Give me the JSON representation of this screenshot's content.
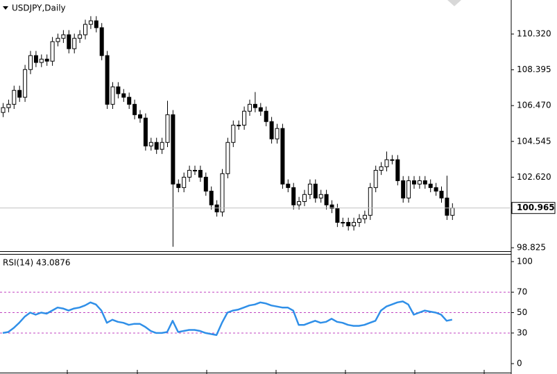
{
  "chart_data": [
    {
      "type": "candlestick",
      "title": "USDJPY,Daily",
      "open": [
        106.1,
        106.36,
        106.54,
        107.29,
        106.92,
        108.41,
        109.16,
        108.79,
        108.97,
        108.86,
        109.91,
        110.09,
        110.28,
        109.53,
        110.09,
        110.28,
        110.84,
        111.03,
        110.66,
        109.16,
        106.54,
        107.48,
        107.11,
        106.92,
        106.54,
        105.98,
        105.8,
        104.3,
        104.49,
        104.12,
        104.49,
        105.98,
        102.25,
        102.06,
        102.62,
        102.99,
        102.99,
        102.62,
        101.87,
        101.13,
        100.75,
        102.81,
        104.49,
        105.42,
        105.42,
        106.17,
        106.54,
        106.36,
        106.17,
        105.61,
        104.68,
        105.24,
        102.25,
        102.06,
        101.13,
        101.31,
        101.69,
        102.25,
        101.5,
        101.69,
        101.13,
        100.94,
        100.19,
        100.19,
        100.0,
        100.19,
        100.38,
        100.57,
        102.06,
        102.99,
        103.18,
        103.56,
        103.56,
        102.43,
        101.5,
        102.43,
        102.25,
        102.43,
        102.25,
        102.06,
        101.87,
        101.5,
        100.57
      ],
      "high": [
        106.61,
        106.79,
        107.54,
        107.54,
        108.66,
        109.41,
        109.41,
        109.22,
        109.22,
        110.16,
        110.34,
        110.53,
        110.53,
        110.34,
        110.53,
        111.09,
        111.28,
        111.28,
        110.91,
        109.41,
        107.73,
        107.73,
        107.36,
        107.17,
        106.79,
        106.23,
        106.05,
        104.74,
        104.74,
        104.74,
        106.73,
        106.23,
        102.5,
        102.87,
        103.24,
        103.24,
        103.24,
        102.87,
        102.12,
        101.38,
        103.06,
        104.74,
        105.67,
        105.67,
        106.42,
        106.79,
        107.2,
        106.61,
        106.42,
        105.86,
        105.49,
        105.49,
        102.5,
        102.31,
        101.56,
        101.94,
        102.5,
        102.5,
        101.94,
        101.94,
        101.38,
        101.19,
        100.44,
        100.44,
        100.44,
        100.63,
        100.82,
        102.31,
        103.24,
        103.43,
        104.0,
        103.81,
        103.81,
        102.68,
        102.68,
        102.68,
        102.68,
        102.68,
        102.5,
        102.31,
        102.12,
        102.7,
        101.22
      ],
      "low": [
        105.85,
        106.11,
        106.29,
        106.67,
        106.67,
        108.16,
        108.54,
        108.54,
        108.61,
        108.61,
        109.66,
        109.84,
        109.28,
        109.28,
        109.84,
        110.03,
        110.59,
        110.41,
        108.91,
        106.29,
        106.29,
        106.86,
        106.67,
        106.29,
        105.73,
        105.55,
        104.05,
        104.05,
        103.87,
        103.87,
        104.24,
        98.88,
        101.81,
        101.81,
        102.37,
        102.74,
        102.37,
        101.62,
        100.88,
        100.5,
        100.5,
        102.56,
        104.24,
        105.17,
        105.17,
        105.92,
        106.11,
        105.92,
        105.36,
        104.43,
        104.43,
        102.0,
        101.81,
        100.88,
        100.88,
        101.06,
        101.44,
        101.25,
        101.25,
        100.88,
        100.69,
        99.94,
        99.94,
        99.75,
        99.75,
        99.94,
        100.13,
        100.32,
        101.81,
        102.74,
        102.93,
        103.31,
        102.18,
        101.25,
        101.25,
        102.0,
        102.0,
        102.0,
        101.81,
        101.62,
        101.25,
        100.32,
        100.32
      ],
      "close": [
        106.36,
        106.54,
        107.29,
        106.92,
        108.41,
        109.16,
        108.79,
        108.97,
        108.86,
        109.91,
        110.09,
        110.28,
        109.53,
        110.09,
        110.28,
        110.84,
        111.03,
        110.66,
        109.16,
        106.54,
        107.48,
        107.11,
        106.92,
        106.54,
        105.98,
        105.8,
        104.3,
        104.49,
        104.12,
        104.49,
        105.98,
        102.25,
        102.06,
        102.62,
        102.99,
        102.99,
        102.62,
        101.87,
        101.13,
        100.75,
        102.81,
        104.49,
        105.42,
        105.42,
        106.17,
        106.54,
        106.36,
        106.17,
        105.61,
        104.68,
        105.24,
        102.25,
        102.06,
        101.13,
        101.31,
        101.69,
        102.25,
        101.5,
        101.69,
        101.13,
        100.94,
        100.19,
        100.19,
        100.0,
        100.19,
        100.38,
        100.57,
        102.06,
        102.99,
        103.18,
        103.56,
        103.56,
        102.43,
        101.5,
        102.43,
        102.25,
        102.43,
        102.25,
        102.06,
        101.87,
        101.5,
        100.57,
        100.965
      ],
      "ylim": [
        98.64,
        112.15
      ],
      "yticks": [
        {
          "value": 110.32,
          "label": "110.320"
        },
        {
          "value": 108.395,
          "label": "108.395"
        },
        {
          "value": 106.47,
          "label": "106.470"
        },
        {
          "value": 104.545,
          "label": "104.545"
        },
        {
          "value": 102.62,
          "label": "102.620"
        },
        {
          "value": 98.825,
          "label": "98.825"
        }
      ],
      "current_price": {
        "value": 100.965,
        "label": "100.965"
      }
    },
    {
      "type": "line",
      "title": "RSI(14) 43.0876",
      "color": "#2f8fe8",
      "values": [
        30,
        31,
        35,
        40,
        46,
        50,
        48,
        50,
        49,
        52,
        55,
        54,
        52,
        54,
        55,
        57,
        60,
        58,
        52,
        40,
        43,
        41,
        40,
        38,
        39,
        39,
        36,
        32,
        30,
        30,
        31,
        42,
        31,
        32,
        33,
        33,
        32,
        30,
        29,
        28,
        40,
        50,
        52,
        53,
        55,
        57,
        58,
        60,
        59,
        57,
        56,
        55,
        55,
        52,
        38,
        38,
        40,
        42,
        40,
        41,
        44,
        41,
        40,
        38,
        37,
        37,
        38,
        40,
        42,
        52,
        56,
        58,
        60,
        61,
        58,
        48,
        50,
        52,
        51,
        50,
        48,
        42,
        43.09
      ],
      "ylim": [
        -8.8,
        106.8
      ],
      "yticks": [
        100,
        70,
        50,
        30,
        0
      ],
      "levels": [
        70,
        50,
        30
      ],
      "level_color": "#c040c0"
    }
  ]
}
